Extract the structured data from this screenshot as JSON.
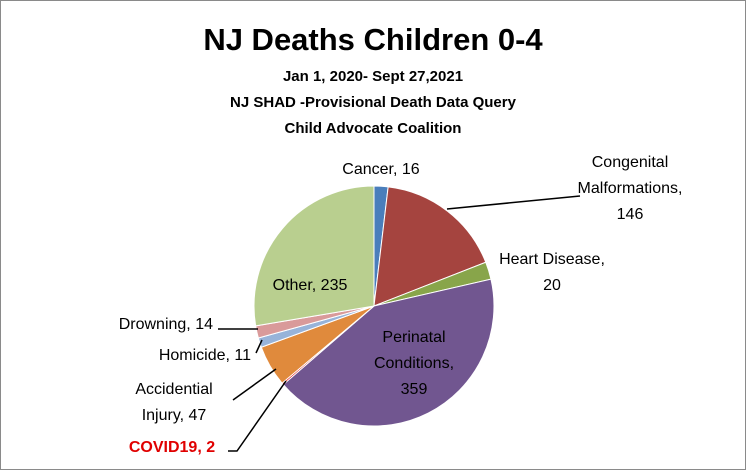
{
  "chart_data": {
    "type": "pie",
    "title": "NJ Deaths Children 0-4",
    "subtitles": [
      "Jan 1, 2020- Sept 27,2021",
      "NJ SHAD -Provisional Death Data Query",
      "Child Advocate Coalition"
    ],
    "slices": [
      {
        "name": "Cancer",
        "value": 16,
        "color": "#4a7ebb",
        "label_lines": [
          "Cancer, 16"
        ]
      },
      {
        "name": "Congenital Malformations",
        "value": 146,
        "color": "#a5443f",
        "label_lines": [
          "Congenital",
          "Malformations,",
          "146"
        ]
      },
      {
        "name": "Heart Disease",
        "value": 20,
        "color": "#88a54a",
        "label_lines": [
          "Heart Disease,",
          "20"
        ]
      },
      {
        "name": "Perinatal Conditions",
        "value": 359,
        "color": "#715690",
        "label_lines": [
          "Perinatal",
          "Conditions,",
          "359"
        ]
      },
      {
        "name": "COVID19",
        "value": 2,
        "color": "#e00000",
        "label_lines": [
          "COVID19, 2"
        ]
      },
      {
        "name": "Accidential Injury",
        "value": 47,
        "color": "#e08a3c",
        "label_lines": [
          "Accidential",
          "Injury, 47"
        ]
      },
      {
        "name": "Homicide",
        "value": 11,
        "color": "#97b3d9",
        "label_lines": [
          "Homicide, 11"
        ]
      },
      {
        "name": "Drowning",
        "value": 14,
        "color": "#d99a9a",
        "label_lines": [
          "Drowning, 14"
        ]
      },
      {
        "name": "Other",
        "value": 235,
        "color": "#b9cf8f",
        "label_lines": [
          "Other, 235"
        ]
      }
    ]
  }
}
